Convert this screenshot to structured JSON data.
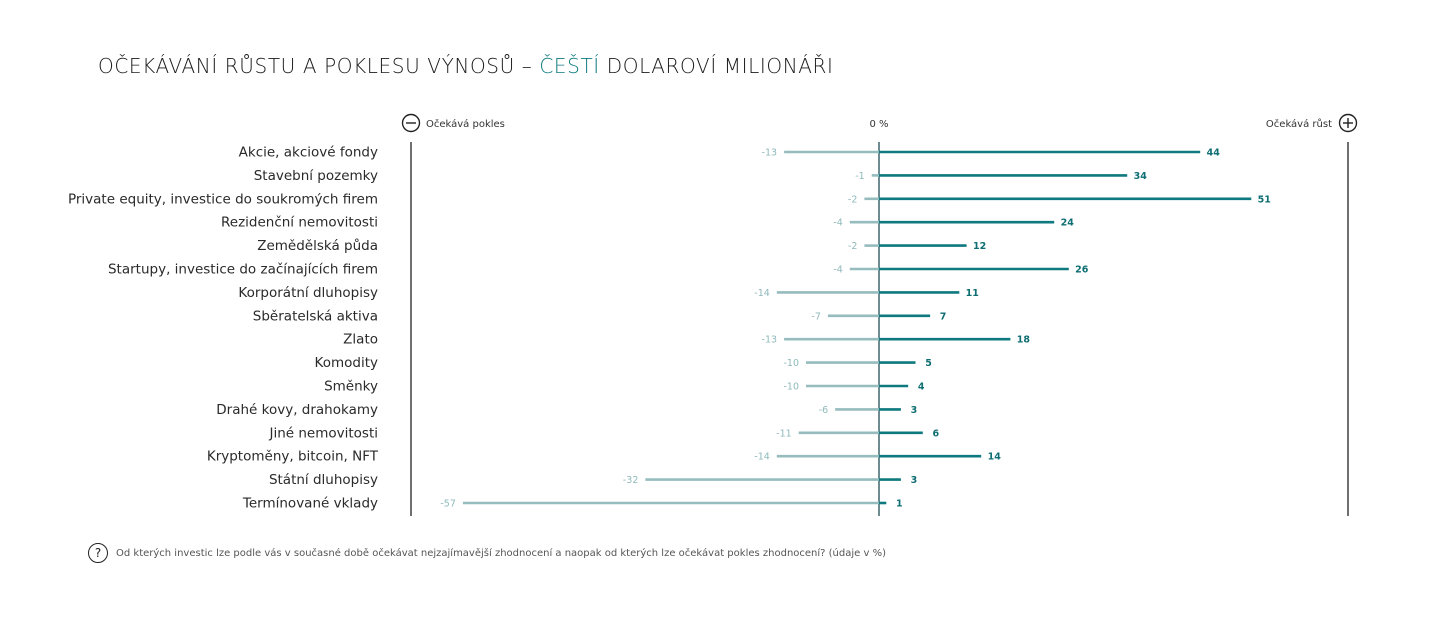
{
  "title": {
    "part1": "OČEKÁVÁNÍ RŮSTU A POKLESU VÝNOSŮ – ",
    "accent": "ČEŠTÍ",
    "part2": " DOLAROVÍ MILIONÁŘI"
  },
  "footnote": "Od kterých investic lze podle vás v současné době očekávat nejzajímavější zhodnocení a naopak od kterých lze očekávat pokles zhodnocení? (údaje v %)",
  "colors": {
    "positive": "#0e7a7f",
    "negative": "#96bcbd",
    "accent": "#0e7a7f"
  },
  "chart_data": {
    "type": "bar",
    "orientation": "horizontal-diverging",
    "header_left": "Očekává pokles",
    "header_center": "0 %",
    "header_right": "Očekává růst",
    "categories": [
      "Akcie, akciové fondy",
      "Stavební pozemky",
      "Private equity, investice do soukromých firem",
      "Rezidenční nemovitosti",
      "Zemědělská půda",
      "Startupy, investice do začínajících firem",
      "Korporátní dluhopisy",
      "Sběratelská aktiva",
      "Zlato",
      "Komodity",
      "Směnky",
      "Drahé kovy, drahokamy",
      "Jiné nemovitosti",
      "Kryptoměny, bitcoin, NFT",
      "Státní dluhopisy",
      "Termínované vklady"
    ],
    "series": [
      {
        "values": [
          -13,
          -1,
          -2,
          -4,
          -2,
          -4,
          -14,
          -7,
          -13,
          -10,
          -10,
          -6,
          -11,
          -14,
          -32,
          -57
        ]
      },
      {
        "values": [
          44,
          34,
          51,
          24,
          12,
          26,
          11,
          7,
          18,
          5,
          4,
          3,
          6,
          14,
          3,
          1
        ]
      }
    ],
    "xlim": [
      -60,
      60
    ]
  }
}
